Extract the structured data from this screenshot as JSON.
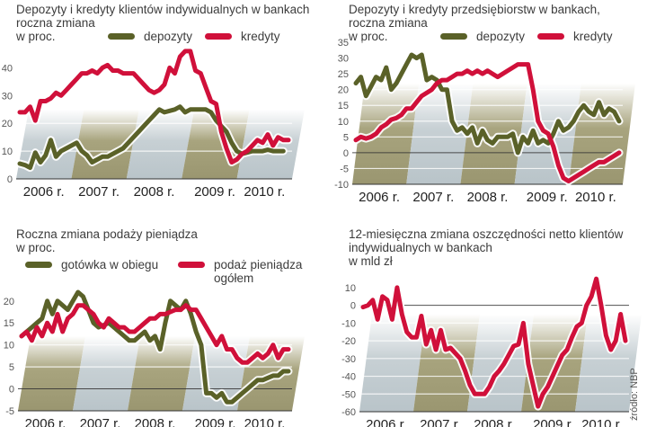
{
  "colors": {
    "deposits": "#5a6128",
    "credits": "#d0103a",
    "band_dark": "#a8a47e",
    "band_light": "#c7d0d4",
    "zero_line": "#333333"
  },
  "source": "źródło: NBP",
  "chart_data": [
    {
      "id": "individual",
      "type": "line",
      "title": "Depozyty i kredyty klientów indywidualnych w bankach\nroczna zmiana\nw proc.",
      "ylabel": "w proc.",
      "ylim": [
        0,
        45
      ],
      "yticks": [
        0,
        10,
        20,
        30,
        40
      ],
      "xticklabels": [
        "2006 r.",
        "2007 r.",
        "2008 r.",
        "2009 r.",
        "2010 r."
      ],
      "legend": [
        "depozyty",
        "kredyty"
      ],
      "legend_position": "top",
      "grid": true,
      "series": [
        {
          "name": "depozyty",
          "color_key": "deposits",
          "values": [
            5.5,
            5,
            4,
            9.5,
            6,
            8.5,
            14,
            8,
            10,
            11,
            12,
            13,
            10,
            8.5,
            6,
            7,
            8,
            8,
            9,
            10,
            11,
            13,
            15,
            17,
            19,
            21,
            23,
            25,
            24,
            24.5,
            25,
            26,
            24,
            25,
            25,
            25,
            25,
            24,
            21,
            19,
            17,
            13,
            10,
            9,
            9.5,
            10,
            10,
            10,
            10.5,
            10,
            10,
            10
          ]
        },
        {
          "name": "kredyty",
          "color_key": "credits",
          "values": [
            24,
            24,
            26,
            21,
            28,
            28,
            29,
            31,
            30,
            32,
            34,
            36,
            38,
            38,
            39,
            38,
            40,
            41,
            39,
            39,
            38,
            38,
            38,
            36,
            34,
            32,
            31,
            32,
            34,
            40,
            38,
            44,
            46,
            46,
            39,
            38,
            33,
            28,
            27,
            17,
            11,
            6,
            7,
            9,
            10,
            12,
            14,
            13,
            16,
            12,
            15,
            14,
            14
          ]
        }
      ]
    },
    {
      "id": "corporate",
      "type": "line",
      "title": "Depozyty i kredyty przedsiębiorstw w bankach,\nroczna zmiana\nw proc.",
      "ylabel": "w proc.",
      "ylim": [
        -10,
        35
      ],
      "yticks": [
        -10,
        -5,
        0,
        5,
        10,
        15,
        20,
        25,
        30,
        35
      ],
      "xticklabels": [
        "2006 r.",
        "2007 r.",
        "2008 r.",
        "2009 r.",
        "2010 r."
      ],
      "legend": [
        "depozyty",
        "kredyty"
      ],
      "legend_position": "top",
      "grid": true,
      "series": [
        {
          "name": "depozyty",
          "color_key": "deposits",
          "values": [
            22,
            24,
            18,
            21,
            24,
            23,
            27,
            20,
            22,
            25,
            28,
            31,
            30,
            31,
            23,
            24,
            23,
            20,
            20,
            10,
            7,
            8,
            6,
            8,
            3,
            7,
            4,
            3,
            5,
            5,
            5,
            6,
            0,
            5,
            3,
            7,
            3,
            4,
            3,
            6,
            10,
            7,
            8,
            10,
            13,
            15,
            13,
            12,
            16,
            12,
            14,
            13,
            10
          ]
        },
        {
          "name": "kredyty",
          "color_key": "credits",
          "values": [
            4,
            5,
            4.5,
            5,
            6,
            8,
            9,
            10.5,
            11,
            12,
            14,
            14,
            16,
            18,
            19,
            20,
            22,
            23,
            23,
            24,
            25,
            25,
            26,
            25,
            26,
            25,
            26,
            25,
            24,
            25,
            26,
            27,
            28,
            28,
            28,
            20,
            10,
            7,
            6,
            2,
            -4,
            -8,
            -9,
            -8,
            -7,
            -6,
            -5,
            -4,
            -3,
            -3,
            -2,
            -1,
            0
          ]
        }
      ]
    },
    {
      "id": "money-supply",
      "type": "line",
      "title": "Roczna zmiana podaży pieniądza\nw proc.",
      "ylabel": "w proc.",
      "ylim": [
        -5,
        22
      ],
      "yticks": [
        -5,
        0,
        5,
        10,
        15,
        20
      ],
      "xticklabels": [
        "2006 r.",
        "2007 r.",
        "2008 r.",
        "2009 r.",
        "2010 r."
      ],
      "legend": [
        "gotówka w obiegu",
        "podaż pieniądza ogółem"
      ],
      "legend_position": "top",
      "grid": true,
      "series": [
        {
          "name": "gotówka w obiegu",
          "color_key": "deposits",
          "values": [
            12,
            13,
            14,
            15,
            16,
            20,
            17,
            20,
            19,
            18,
            20,
            22,
            21,
            18,
            15,
            14,
            14.5,
            15,
            14,
            13,
            12,
            11,
            11,
            12,
            13,
            11,
            12,
            9,
            15,
            20,
            19,
            18,
            20,
            17,
            13,
            10,
            -1,
            -1,
            -2,
            -1,
            -3,
            -3,
            -2,
            -1,
            0,
            1,
            2,
            2,
            2.5,
            3,
            3,
            4,
            4
          ]
        },
        {
          "name": "podaż pieniądza ogółem",
          "color_key": "credits",
          "values": [
            12,
            13,
            11,
            14,
            12,
            15,
            13,
            17,
            13,
            16,
            17,
            19,
            19,
            18,
            17,
            15,
            14,
            16,
            15,
            14,
            14,
            13,
            13,
            14,
            15,
            16,
            16,
            17,
            17,
            17.5,
            18,
            18,
            19,
            18,
            18,
            16,
            14,
            12,
            10,
            12,
            9,
            9,
            7,
            6,
            6,
            7,
            8,
            7,
            8,
            10,
            7,
            9,
            9
          ]
        }
      ]
    },
    {
      "id": "net-savings",
      "type": "line",
      "title": "12-miesięczna zmiana oszczędności netto klientów\nindywidualnych w bankach\nw mld zł",
      "ylabel": "w mld zł",
      "ylim": [
        -60,
        12
      ],
      "yticks": [
        -60,
        -50,
        -40,
        -30,
        -20,
        -10,
        0,
        10
      ],
      "xticklabels": [
        "2006 r.",
        "2007 r.",
        "2008 r.",
        "2009 r.",
        "2010 r."
      ],
      "legend": [],
      "grid": true,
      "series": [
        {
          "name": "oszczędności netto",
          "color_key": "credits",
          "values": [
            -1,
            0,
            3,
            -8,
            5,
            3,
            -8,
            10,
            -5,
            -15,
            -18,
            -18,
            -6,
            -22,
            -14,
            -25,
            -14,
            -25,
            -24,
            -27,
            -30,
            -37,
            -45,
            -50,
            -50,
            -50,
            -46,
            -40,
            -37,
            -33,
            -28,
            -23,
            -22,
            -10,
            -33,
            -45,
            -57,
            -50,
            -46,
            -40,
            -34,
            -28,
            -25,
            -18,
            -12,
            -10,
            0,
            5,
            15,
            0,
            -17,
            -25,
            -20,
            -5,
            -20
          ]
        }
      ]
    }
  ]
}
